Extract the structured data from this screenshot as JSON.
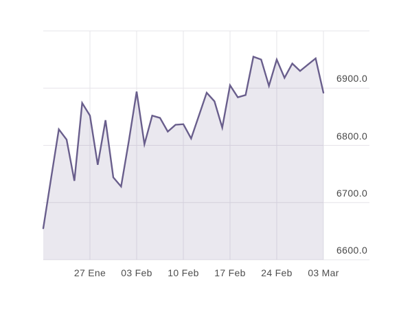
{
  "chart_data": {
    "type": "area",
    "title": "",
    "xlabel": "",
    "ylabel": "",
    "ylim": [
      6600,
      7000
    ],
    "grid": true,
    "legend": false,
    "values": [
      6655,
      6742,
      6828,
      6810,
      6738,
      6874,
      6852,
      6766,
      6844,
      6744,
      6728,
      6808,
      6894,
      6802,
      6852,
      6848,
      6824,
      6836,
      6837,
      6812,
      6852,
      6892,
      6877,
      6831,
      6905,
      6884,
      6888,
      6955,
      6950,
      6904,
      6950,
      6918,
      6943,
      6930,
      6941,
      6952,
      6892
    ],
    "x_tick_labels": [
      "27 Ene",
      "03 Feb",
      "10 Feb",
      "17 Feb",
      "24 Feb",
      "03 Mar"
    ],
    "x_tick_indices": [
      6,
      12,
      18,
      24,
      30,
      36
    ],
    "y_tick_labels": [
      {
        "label": "6900.0",
        "value": 6900
      },
      {
        "label": "6800.0",
        "value": 6800
      },
      {
        "label": "6700.0",
        "value": 6700
      },
      {
        "label": "6600.0",
        "value": 6600
      }
    ],
    "y_grid_values": [
      7000,
      6900,
      6800,
      6700,
      6600
    ],
    "colors": {
      "line": "#695e8c",
      "fill": "rgba(105,95,140,0.14)",
      "grid": "#e6e4e9",
      "axis_text": "#4a4a4a",
      "background": "#ffffff"
    }
  }
}
